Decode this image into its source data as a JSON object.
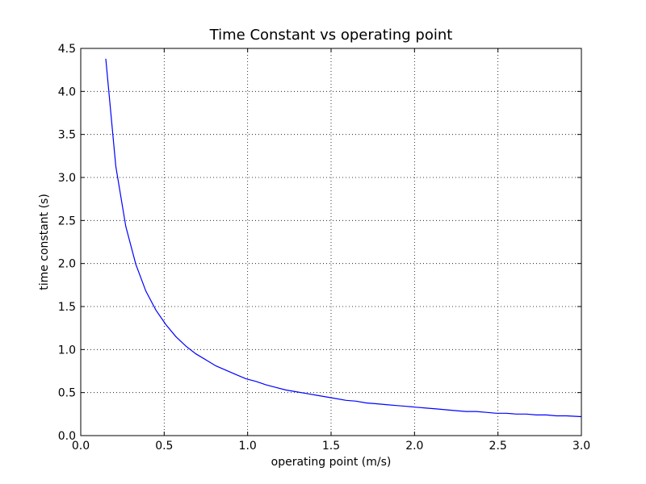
{
  "chart_data": {
    "type": "line",
    "title": "Time Constant vs operating point",
    "xlabel": "operating point (m/s)",
    "ylabel": "time constant (s)",
    "xlim": [
      0.0,
      3.0
    ],
    "ylim": [
      0.0,
      4.5
    ],
    "xticks": [
      0.0,
      0.5,
      1.0,
      1.5,
      2.0,
      2.5,
      3.0
    ],
    "xtick_labels": [
      "0.0",
      "0.5",
      "1.0",
      "1.5",
      "2.0",
      "2.5",
      "3.0"
    ],
    "yticks": [
      0.0,
      0.5,
      1.0,
      1.5,
      2.0,
      2.5,
      3.0,
      3.5,
      4.0,
      4.5
    ],
    "ytick_labels": [
      "0.0",
      "0.5",
      "1.0",
      "1.5",
      "2.0",
      "2.5",
      "3.0",
      "3.5",
      "4.0",
      "4.5"
    ],
    "grid": true,
    "series": [
      {
        "color": "#0000ff",
        "x": [
          0.15,
          0.21,
          0.27,
          0.33,
          0.39,
          0.45,
          0.51,
          0.57,
          0.63,
          0.69,
          0.75,
          0.81,
          0.87,
          0.93,
          0.99,
          1.05,
          1.11,
          1.17,
          1.23,
          1.29,
          1.35,
          1.41,
          1.47,
          1.53,
          1.59,
          1.65,
          1.71,
          1.77,
          1.83,
          1.89,
          1.95,
          2.01,
          2.07,
          2.13,
          2.19,
          2.25,
          2.31,
          2.37,
          2.43,
          2.49,
          2.55,
          2.61,
          2.67,
          2.73,
          2.79,
          2.85,
          2.91,
          3.0
        ],
        "y": [
          4.38,
          3.13,
          2.43,
          1.99,
          1.68,
          1.46,
          1.29,
          1.15,
          1.04,
          0.95,
          0.88,
          0.81,
          0.76,
          0.71,
          0.66,
          0.63,
          0.59,
          0.56,
          0.53,
          0.51,
          0.49,
          0.47,
          0.45,
          0.43,
          0.41,
          0.4,
          0.38,
          0.37,
          0.36,
          0.35,
          0.34,
          0.33,
          0.32,
          0.31,
          0.3,
          0.29,
          0.28,
          0.28,
          0.27,
          0.26,
          0.26,
          0.25,
          0.25,
          0.24,
          0.24,
          0.23,
          0.23,
          0.22
        ]
      }
    ]
  }
}
